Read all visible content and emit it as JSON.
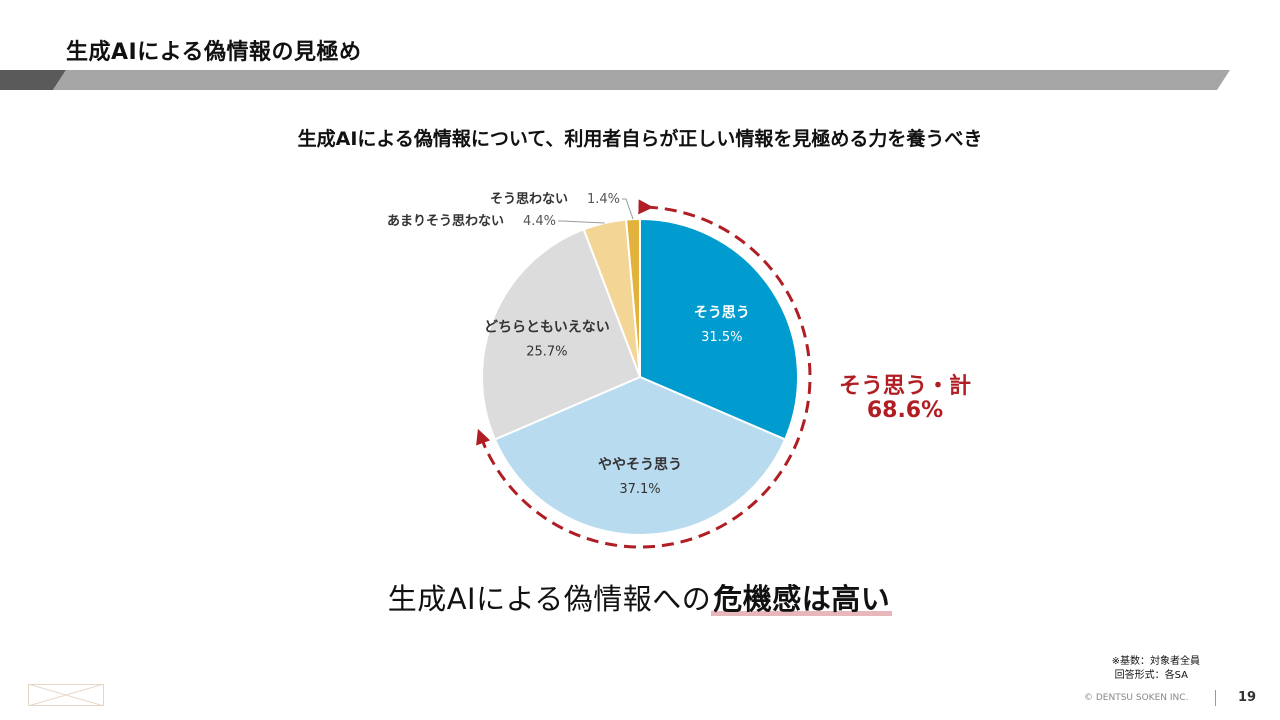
{
  "page": {
    "title": "生成AIによる偽情報の見極め",
    "conclusion_prefix": "生成AIによる偽情報への",
    "conclusion_highlight": "危機感は高い",
    "note_base": "※基数：対象者全員",
    "note_format": "回答形式：各SA",
    "copyright": "© DENTSU SOKEN INC.",
    "page_number": "19",
    "accent_color": "#b01e23"
  },
  "total": {
    "label": "そう思う・計",
    "value": "68.6%"
  },
  "chart_data": {
    "type": "pie",
    "title": "生成AIによる偽情報について、利用者自らが正しい情報を見極める力を養うべき",
    "slices": [
      {
        "label": "そう思う",
        "value": 31.5,
        "value_label": "31.5%",
        "color": "#009bcf",
        "text_color": "#ffffff"
      },
      {
        "label": "ややそう思う",
        "value": 37.1,
        "value_label": "37.1%",
        "color": "#b9dbf0",
        "text_color": "#333333"
      },
      {
        "label": "どちらともいえない",
        "value": 25.7,
        "value_label": "25.7%",
        "color": "#dcdcdc",
        "text_color": "#333333"
      },
      {
        "label": "あまりそう思わない",
        "value": 4.4,
        "value_label": "4.4%",
        "color": "#f3d596",
        "text_color": "#333333"
      },
      {
        "label": "そう思わない",
        "value": 1.4,
        "value_label": "1.4%",
        "color": "#e2b23a",
        "text_color": "#333333"
      }
    ],
    "start_angle": "12 o'clock",
    "direction": "clockwise"
  }
}
